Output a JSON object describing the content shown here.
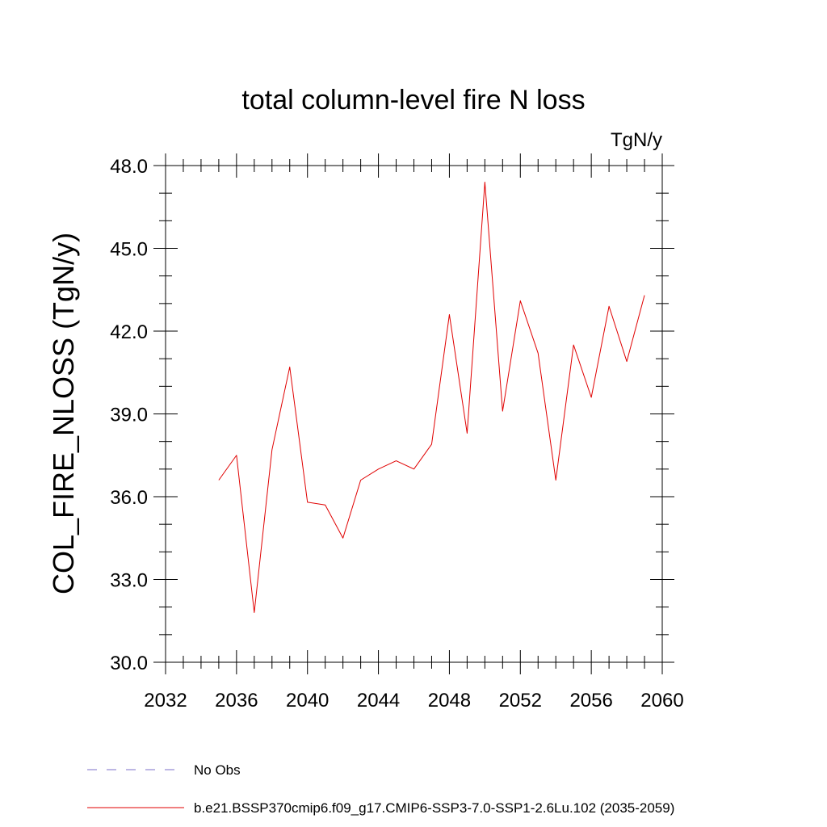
{
  "chart_data": {
    "type": "line",
    "title": "total column-level fire N loss",
    "units_label": "TgN/y",
    "ylabel": "COL_FIRE_NLOSS  (TgN/y)",
    "xlabel": "",
    "xlim": [
      2032,
      2060
    ],
    "ylim": [
      30.0,
      48.0
    ],
    "x_ticks": [
      2032,
      2036,
      2040,
      2044,
      2048,
      2052,
      2056,
      2060
    ],
    "x_tick_labels": [
      "2032",
      "2036",
      "2040",
      "2044",
      "2048",
      "2052",
      "2056",
      "2060"
    ],
    "y_ticks": [
      30,
      33,
      36,
      39,
      42,
      45,
      48
    ],
    "y_tick_labels": [
      "30.0",
      "33.0",
      "36.0",
      "39.0",
      "42.0",
      "45.0",
      "48.0"
    ],
    "x_minor_step": 1,
    "y_minor_step": 1,
    "grid": false,
    "legend_placement": "bottom",
    "series": [
      {
        "name": "b.e21.BSSP370cmip6.f09_g17.CMIP6-SSP3-7.0-SSP1-2.6Lu.102 (2035-2059)",
        "color": "#e00000",
        "style": "solid",
        "x": [
          2035,
          2036,
          2037,
          2038,
          2039,
          2040,
          2041,
          2042,
          2043,
          2044,
          2045,
          2046,
          2047,
          2048,
          2049,
          2050,
          2051,
          2052,
          2053,
          2054,
          2055,
          2056,
          2057,
          2058,
          2059
        ],
        "y": [
          36.6,
          37.5,
          31.8,
          37.7,
          40.7,
          35.8,
          35.7,
          34.5,
          36.6,
          37.0,
          37.3,
          37.0,
          37.9,
          42.6,
          38.3,
          47.4,
          39.1,
          43.1,
          41.2,
          36.6,
          41.5,
          39.6,
          42.9,
          40.9,
          43.3
        ]
      }
    ],
    "legend": [
      {
        "label": "No Obs",
        "color": "#7b6fc9",
        "style": "dashed"
      },
      {
        "label": "b.e21.BSSP370cmip6.f09_g17.CMIP6-SSP3-7.0-SSP1-2.6Lu.102 (2035-2059)",
        "color": "#e00000",
        "style": "solid"
      }
    ]
  }
}
